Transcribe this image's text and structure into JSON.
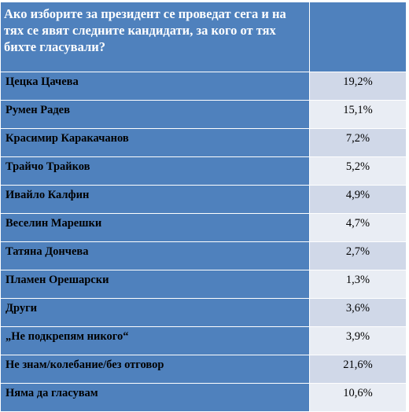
{
  "question": "Ако изборите за президент се проведат сега и на тях се явят следните кандидати, за кого от тях бихте гласували?",
  "rows": [
    {
      "label": "Цецка Цачева",
      "value": "19,2%"
    },
    {
      "label": "Румен Радев",
      "value": "15,1%"
    },
    {
      "label": "Красимир Каракачанов",
      "value": "7,2%"
    },
    {
      "label": "Трайчо Трайков",
      "value": "5,2%"
    },
    {
      "label": "Ивайло Калфин",
      "value": "4,9%"
    },
    {
      "label": "Веселин Марешки",
      "value": "4,7%"
    },
    {
      "label": "Татяна Дончева",
      "value": "2,7%"
    },
    {
      "label": "Пламен Орешарски",
      "value": "1,3%"
    },
    {
      "label": "Други",
      "value": "3,6%"
    },
    {
      "label": "„Не подкрепям никого“",
      "value": "3,9%"
    },
    {
      "label": "Не знам/колебание/без отговор",
      "value": "21,6%"
    },
    {
      "label": "Няма да гласувам",
      "value": "10,6%"
    }
  ],
  "colors": {
    "header_blue": "#4f81bd",
    "row_odd_value": "#d0d8e8",
    "row_even_value": "#e9edf4"
  }
}
